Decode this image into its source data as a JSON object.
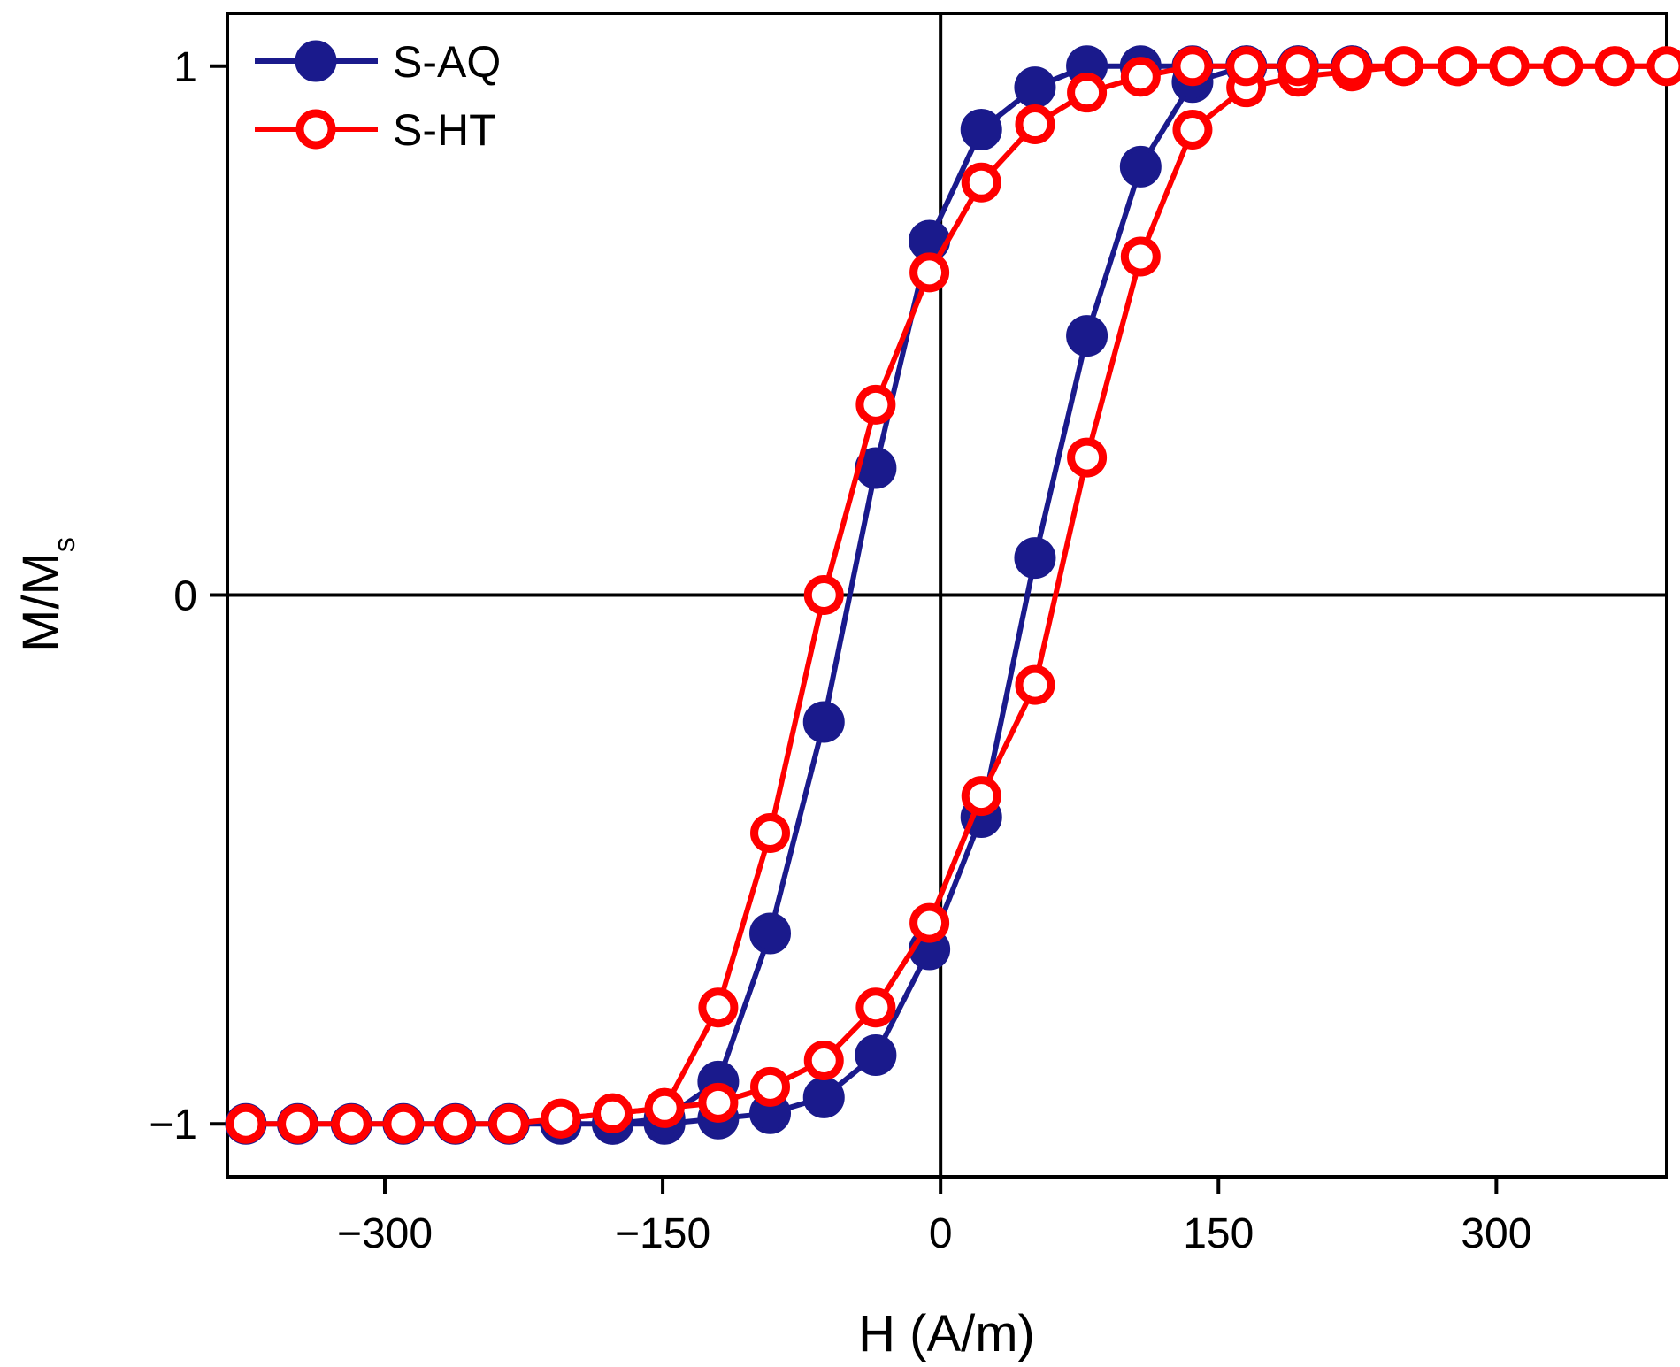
{
  "chart_data": {
    "type": "line",
    "title": "",
    "xlabel": "H (A/m)",
    "ylabel_main": "M/M",
    "ylabel_sub": "s",
    "xlim": [
      -385,
      392
    ],
    "ylim": [
      -1.1,
      1.1
    ],
    "xticks": [
      -300,
      -150,
      0,
      150,
      300
    ],
    "xtick_labels": [
      "−300",
      "−150",
      "0",
      "150",
      "300"
    ],
    "yticks": [
      -1,
      0,
      1
    ],
    "ytick_labels": [
      "−1",
      "0",
      "1"
    ],
    "legend_position": "top-left",
    "zero_lines": true,
    "series": [
      {
        "name": "S-AQ",
        "color": "#1a1a8c",
        "marker": "filled-circle",
        "lower_branch": {
          "x": [
            -375,
            -347,
            -318,
            -290,
            -262,
            -233,
            -205,
            -177,
            -149,
            -120,
            -92,
            -63,
            -35,
            -6,
            22,
            51,
            79,
            108,
            136,
            165,
            193,
            222
          ],
          "y": [
            -1,
            -1,
            -1,
            -1,
            -1,
            -1,
            -1,
            -1,
            -1,
            -0.99,
            -0.98,
            -0.95,
            -0.87,
            -0.67,
            -0.42,
            0.07,
            0.49,
            0.81,
            0.97,
            1,
            1,
            1
          ]
        },
        "upper_branch": {
          "x": [
            222,
            193,
            165,
            136,
            108,
            79,
            51,
            22,
            -6,
            -35,
            -63,
            -92,
            -120,
            -149,
            -177
          ],
          "y": [
            1,
            1,
            1,
            1,
            1,
            1,
            0.96,
            0.88,
            0.67,
            0.24,
            -0.24,
            -0.64,
            -0.92,
            -0.99,
            -1
          ]
        }
      },
      {
        "name": "S-HT",
        "color": "#ff0000",
        "marker": "open-circle",
        "lower_branch": {
          "x": [
            -375,
            -347,
            -318,
            -290,
            -262,
            -233,
            -205,
            -177,
            -149,
            -120,
            -92,
            -63,
            -35,
            -6,
            22,
            51,
            79,
            108,
            136,
            165,
            193,
            222,
            250,
            279,
            307,
            336,
            364,
            392
          ],
          "y": [
            -1,
            -1,
            -1,
            -1,
            -1,
            -1,
            -0.99,
            -0.98,
            -0.97,
            -0.96,
            -0.93,
            -0.88,
            -0.78,
            -0.62,
            -0.38,
            -0.17,
            0.26,
            0.64,
            0.88,
            0.96,
            0.98,
            0.99,
            1,
            1,
            1,
            1,
            1,
            1
          ]
        },
        "upper_branch": {
          "x": [
            392,
            364,
            336,
            307,
            279,
            250,
            222,
            193,
            165,
            136,
            108,
            79,
            51,
            22,
            -6,
            -35,
            -63,
            -92,
            -120,
            -149,
            -177,
            -205
          ],
          "y": [
            1,
            1,
            1,
            1,
            1,
            1,
            1,
            1,
            1,
            1,
            0.98,
            0.95,
            0.89,
            0.78,
            0.61,
            0.36,
            0,
            -0.45,
            -0.78,
            -0.97,
            -0.98,
            -0.99
          ]
        }
      }
    ]
  }
}
